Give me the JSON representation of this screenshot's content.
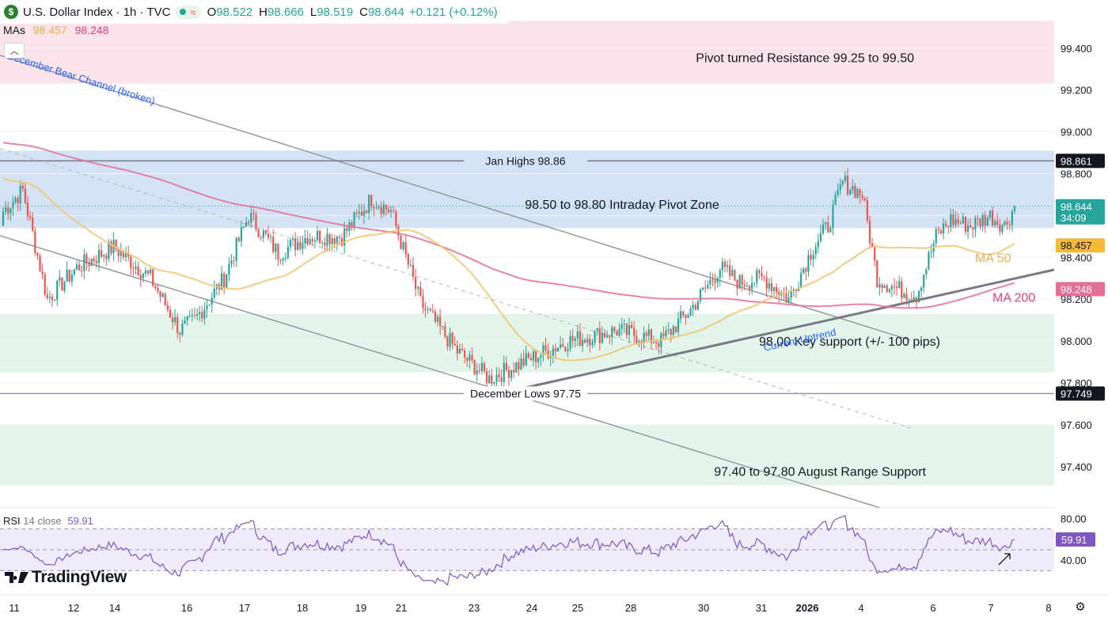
{
  "header": {
    "symbol_icon": "$",
    "title": "U.S. Dollar Index · 1h · TVC",
    "status_icons": [
      "market-open-dot",
      "delayed-data-wave"
    ],
    "ohlc": [
      {
        "label": "O",
        "value": "98.522"
      },
      {
        "label": "H",
        "value": "98.666"
      },
      {
        "label": "L",
        "value": "98.519"
      },
      {
        "label": "C",
        "value": "98.644"
      }
    ],
    "change": "+0.121 (+0.12%)"
  },
  "mas_legend": {
    "label": "MAs",
    "ma50_value": "98.457",
    "ma200_value": "98.248"
  },
  "rsi_legend": {
    "label": "RSI",
    "params": "14 close",
    "value": "59.91"
  },
  "logo": {
    "text": "TradingView"
  },
  "colors": {
    "up": "#26a69a",
    "down": "#ef5350",
    "ma50": "#f0c773",
    "ma200": "#e36f97",
    "resistance_zone": "#fbe3ea",
    "pivot_zone": "#d3e3f3",
    "support_zone": "#e3f5ea",
    "rsi_line": "#7e57c2",
    "rsi_band": "#f0ebfa",
    "annotation_blue": "#2962ff"
  },
  "chart_data": [
    {
      "type": "candlestick",
      "title": "U.S. Dollar Index · 1h · TVC",
      "ylim": [
        97.21,
        99.63
      ],
      "y_ticks": [
        97.4,
        97.6,
        97.8,
        98.0,
        98.2,
        98.4,
        98.6,
        98.8,
        99.0,
        99.2,
        99.4
      ],
      "y_tick_labels": [
        "97.400",
        "97.600",
        "97.800",
        "98.000",
        "98.200",
        "98.400",
        "98.600",
        "98.800",
        "99.000",
        "99.200",
        "99.400"
      ],
      "x_tick_labels": [
        "11",
        "12",
        "14",
        "16",
        "17",
        "18",
        "19",
        "21",
        "23",
        "24",
        "25",
        "28",
        "30",
        "31",
        "2026",
        "4",
        "6",
        "7",
        "8"
      ],
      "x_tick_bold": [
        "2026"
      ],
      "candles": {
        "first": {
          "o": 98.55,
          "c": 98.62
        },
        "waypoints": [
          {
            "i": 0,
            "close": 98.62
          },
          {
            "i": 8,
            "close": 98.72
          },
          {
            "i": 18,
            "close": 98.2
          },
          {
            "i": 30,
            "close": 98.35
          },
          {
            "i": 45,
            "close": 98.45
          },
          {
            "i": 60,
            "close": 98.3
          },
          {
            "i": 72,
            "close": 98.05
          },
          {
            "i": 78,
            "close": 98.1
          },
          {
            "i": 90,
            "close": 98.3
          },
          {
            "i": 100,
            "close": 98.6
          },
          {
            "i": 112,
            "close": 98.42
          },
          {
            "i": 124,
            "close": 98.5
          },
          {
            "i": 138,
            "close": 98.5
          },
          {
            "i": 150,
            "close": 98.68
          },
          {
            "i": 158,
            "close": 98.62
          },
          {
            "i": 170,
            "close": 98.18
          },
          {
            "i": 185,
            "close": 97.95
          },
          {
            "i": 198,
            "close": 97.82
          },
          {
            "i": 212,
            "close": 97.9
          },
          {
            "i": 230,
            "close": 98.0
          },
          {
            "i": 250,
            "close": 98.05
          },
          {
            "i": 268,
            "close": 98.0
          },
          {
            "i": 280,
            "close": 98.15
          },
          {
            "i": 292,
            "close": 98.35
          },
          {
            "i": 300,
            "close": 98.28
          },
          {
            "i": 310,
            "close": 98.3
          },
          {
            "i": 320,
            "close": 98.2
          },
          {
            "i": 330,
            "close": 98.45
          },
          {
            "i": 336,
            "close": 98.55
          },
          {
            "i": 342,
            "close": 98.76
          },
          {
            "i": 350,
            "close": 98.7
          },
          {
            "i": 356,
            "close": 98.3
          },
          {
            "i": 364,
            "close": 98.25
          },
          {
            "i": 372,
            "close": 98.22
          },
          {
            "i": 380,
            "close": 98.5
          },
          {
            "i": 386,
            "close": 98.58
          },
          {
            "i": 394,
            "close": 98.55
          },
          {
            "i": 402,
            "close": 98.6
          },
          {
            "i": 408,
            "close": 98.55
          },
          {
            "i": 412,
            "close": 98.644
          }
        ],
        "count": 413,
        "last_close": 98.644,
        "period": "1h"
      },
      "series": [
        {
          "name": "MA 50",
          "period": 50,
          "last_value": 98.457
        },
        {
          "name": "MA 200",
          "period": 200,
          "last_value": 98.248
        }
      ],
      "zones": [
        {
          "label": "Pivot turned Resistance 99.25 to 99.50",
          "from": 99.23,
          "to": 99.53
        },
        {
          "label": "98.50 to 98.80 Intraday Pivot Zone",
          "from": 98.54,
          "to": 98.91
        },
        {
          "label": "98.00 Key support (+/- 100 pips)",
          "from": 97.85,
          "to": 98.13
        },
        {
          "label": "97.40 to 97.80 August Range Support",
          "from": 97.31,
          "to": 97.6
        }
      ],
      "horizontal_lines": [
        {
          "label": "Jan Highs 98.86",
          "value": 98.861,
          "price_label": "98.861"
        },
        {
          "label": "December Lows 97.75",
          "value": 97.749,
          "price_label": "97.749"
        }
      ],
      "trend_lines": [
        {
          "label": "December Bear Channel (broken)",
          "kind": "channel-upper"
        },
        {
          "label": "",
          "kind": "channel-lower"
        },
        {
          "label": "",
          "kind": "channel-mid"
        },
        {
          "label": "Current Uptrend",
          "kind": "uptrend"
        }
      ],
      "price_labels": [
        {
          "value": "98.644",
          "sub": "34:09",
          "kind": "last-price"
        },
        {
          "value": "98.457",
          "kind": "ma50"
        },
        {
          "value": "98.248",
          "kind": "ma200"
        }
      ],
      "line_labels": [
        {
          "text": "MA 50",
          "series": "MA 50"
        },
        {
          "text": "MA 200",
          "series": "MA 200"
        }
      ]
    },
    {
      "type": "line",
      "title": "RSI 14 close",
      "ylim": [
        12,
        88
      ],
      "y_ticks": [
        80,
        40
      ],
      "y_tick_labels": [
        "80.00",
        "40.00"
      ],
      "band": [
        30,
        70
      ],
      "midline": 50,
      "series": [
        {
          "name": "RSI",
          "last_value": 59.91
        }
      ],
      "value_label": "59.91",
      "annotation": "up-arrow"
    }
  ]
}
